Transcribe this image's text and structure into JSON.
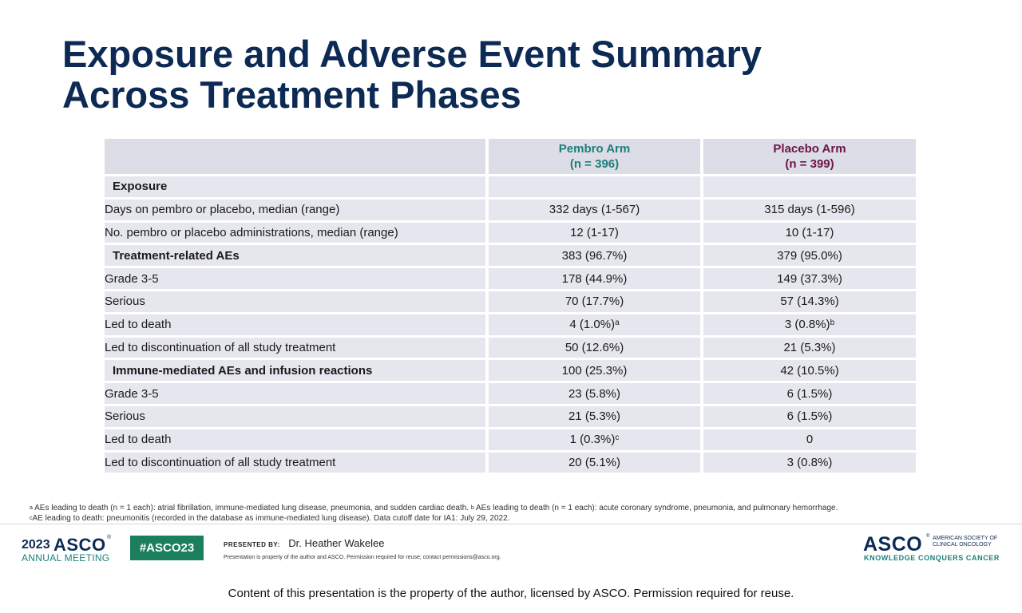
{
  "slide": {
    "title_line1": "Exposure and Adverse Event Summary",
    "title_line2": "Across Treatment Phases"
  },
  "table": {
    "header": {
      "pembro_name": "Pembro Arm",
      "pembro_n": "(n = 396)",
      "placebo_name": "Placebo Arm",
      "placebo_n": "(n = 399)"
    },
    "rows": [
      {
        "label": "Exposure",
        "bold": true,
        "pembro": "",
        "placebo": ""
      },
      {
        "label": "Days on pembro or placebo, median (range)",
        "pembro": "332 days (1-567)",
        "placebo": "315 days (1-596)"
      },
      {
        "label": "No. pembro or placebo administrations, median (range)",
        "pembro": "12 (1-17)",
        "placebo": "10 (1-17)"
      },
      {
        "label": "Treatment-related AEs",
        "bold": true,
        "pembro": "383 (96.7%)",
        "placebo": "379 (95.0%)"
      },
      {
        "label": "Grade 3-5",
        "pembro": "178 (44.9%)",
        "placebo": "149 (37.3%)"
      },
      {
        "label": "Serious",
        "pembro": "70 (17.7%)",
        "placebo": "57 (14.3%)"
      },
      {
        "label": "Led to death",
        "pembro": "4 (1.0%)",
        "pembro_sup": "a",
        "placebo": "3 (0.8%)",
        "placebo_sup": "b"
      },
      {
        "label": "Led to discontinuation of all study treatment",
        "pembro": "50 (12.6%)",
        "placebo": "21 (5.3%)"
      },
      {
        "label": "Immune-mediated AEs and infusion reactions",
        "bold": true,
        "pembro": "100 (25.3%)",
        "placebo": "42 (10.5%)"
      },
      {
        "label": "Grade 3-5",
        "pembro": "23 (5.8%)",
        "placebo": "6 (1.5%)"
      },
      {
        "label": "Serious",
        "pembro": "21 (5.3%)",
        "placebo": "6 (1.5%)"
      },
      {
        "label": "Led to death",
        "pembro": "1 (0.3%)",
        "pembro_sup": "c",
        "placebo": "0"
      },
      {
        "label": "Led to discontinuation of all study treatment",
        "pembro": "20 (5.1%)",
        "placebo": "3 (0.8%)"
      }
    ]
  },
  "footnotes": {
    "a_mark": "a",
    "a_text": "AEs leading to death (n = 1 each): atrial fibrillation, immune-mediated lung disease, pneumonia, and sudden cardiac death.",
    "b_mark": "b",
    "b_text": "AEs leading to death (n = 1 each): acute coronary syndrome, pneumonia, and pulmonary hemorrhage.",
    "c_mark": "c",
    "c_text": "AE leading to death: pneumonitis (recorded in the database as immune-mediated lung disease). Data cutoff date for IA1: July 29, 2022."
  },
  "footer": {
    "meeting_year": "2023",
    "meeting_name": "ASCO",
    "meeting_reg": "®",
    "meeting_sub": "ANNUAL MEETING",
    "hashtag": "#ASCO23",
    "presented_by": "PRESENTED BY:",
    "presenter": "Dr. Heather Wakelee",
    "property_note": "Presentation is property of the author and ASCO. Permission required for reuse; contact permissions@asco.org.",
    "asco_word": "ASCO",
    "asco_reg": "®",
    "asco_society": "AMERICAN SOCIETY OF CLINICAL ONCOLOGY",
    "asco_tagline": "KNOWLEDGE CONQUERS CANCER",
    "bottom_note": "Content of this presentation is the property of the author, licensed by ASCO. Permission required for reuse."
  }
}
